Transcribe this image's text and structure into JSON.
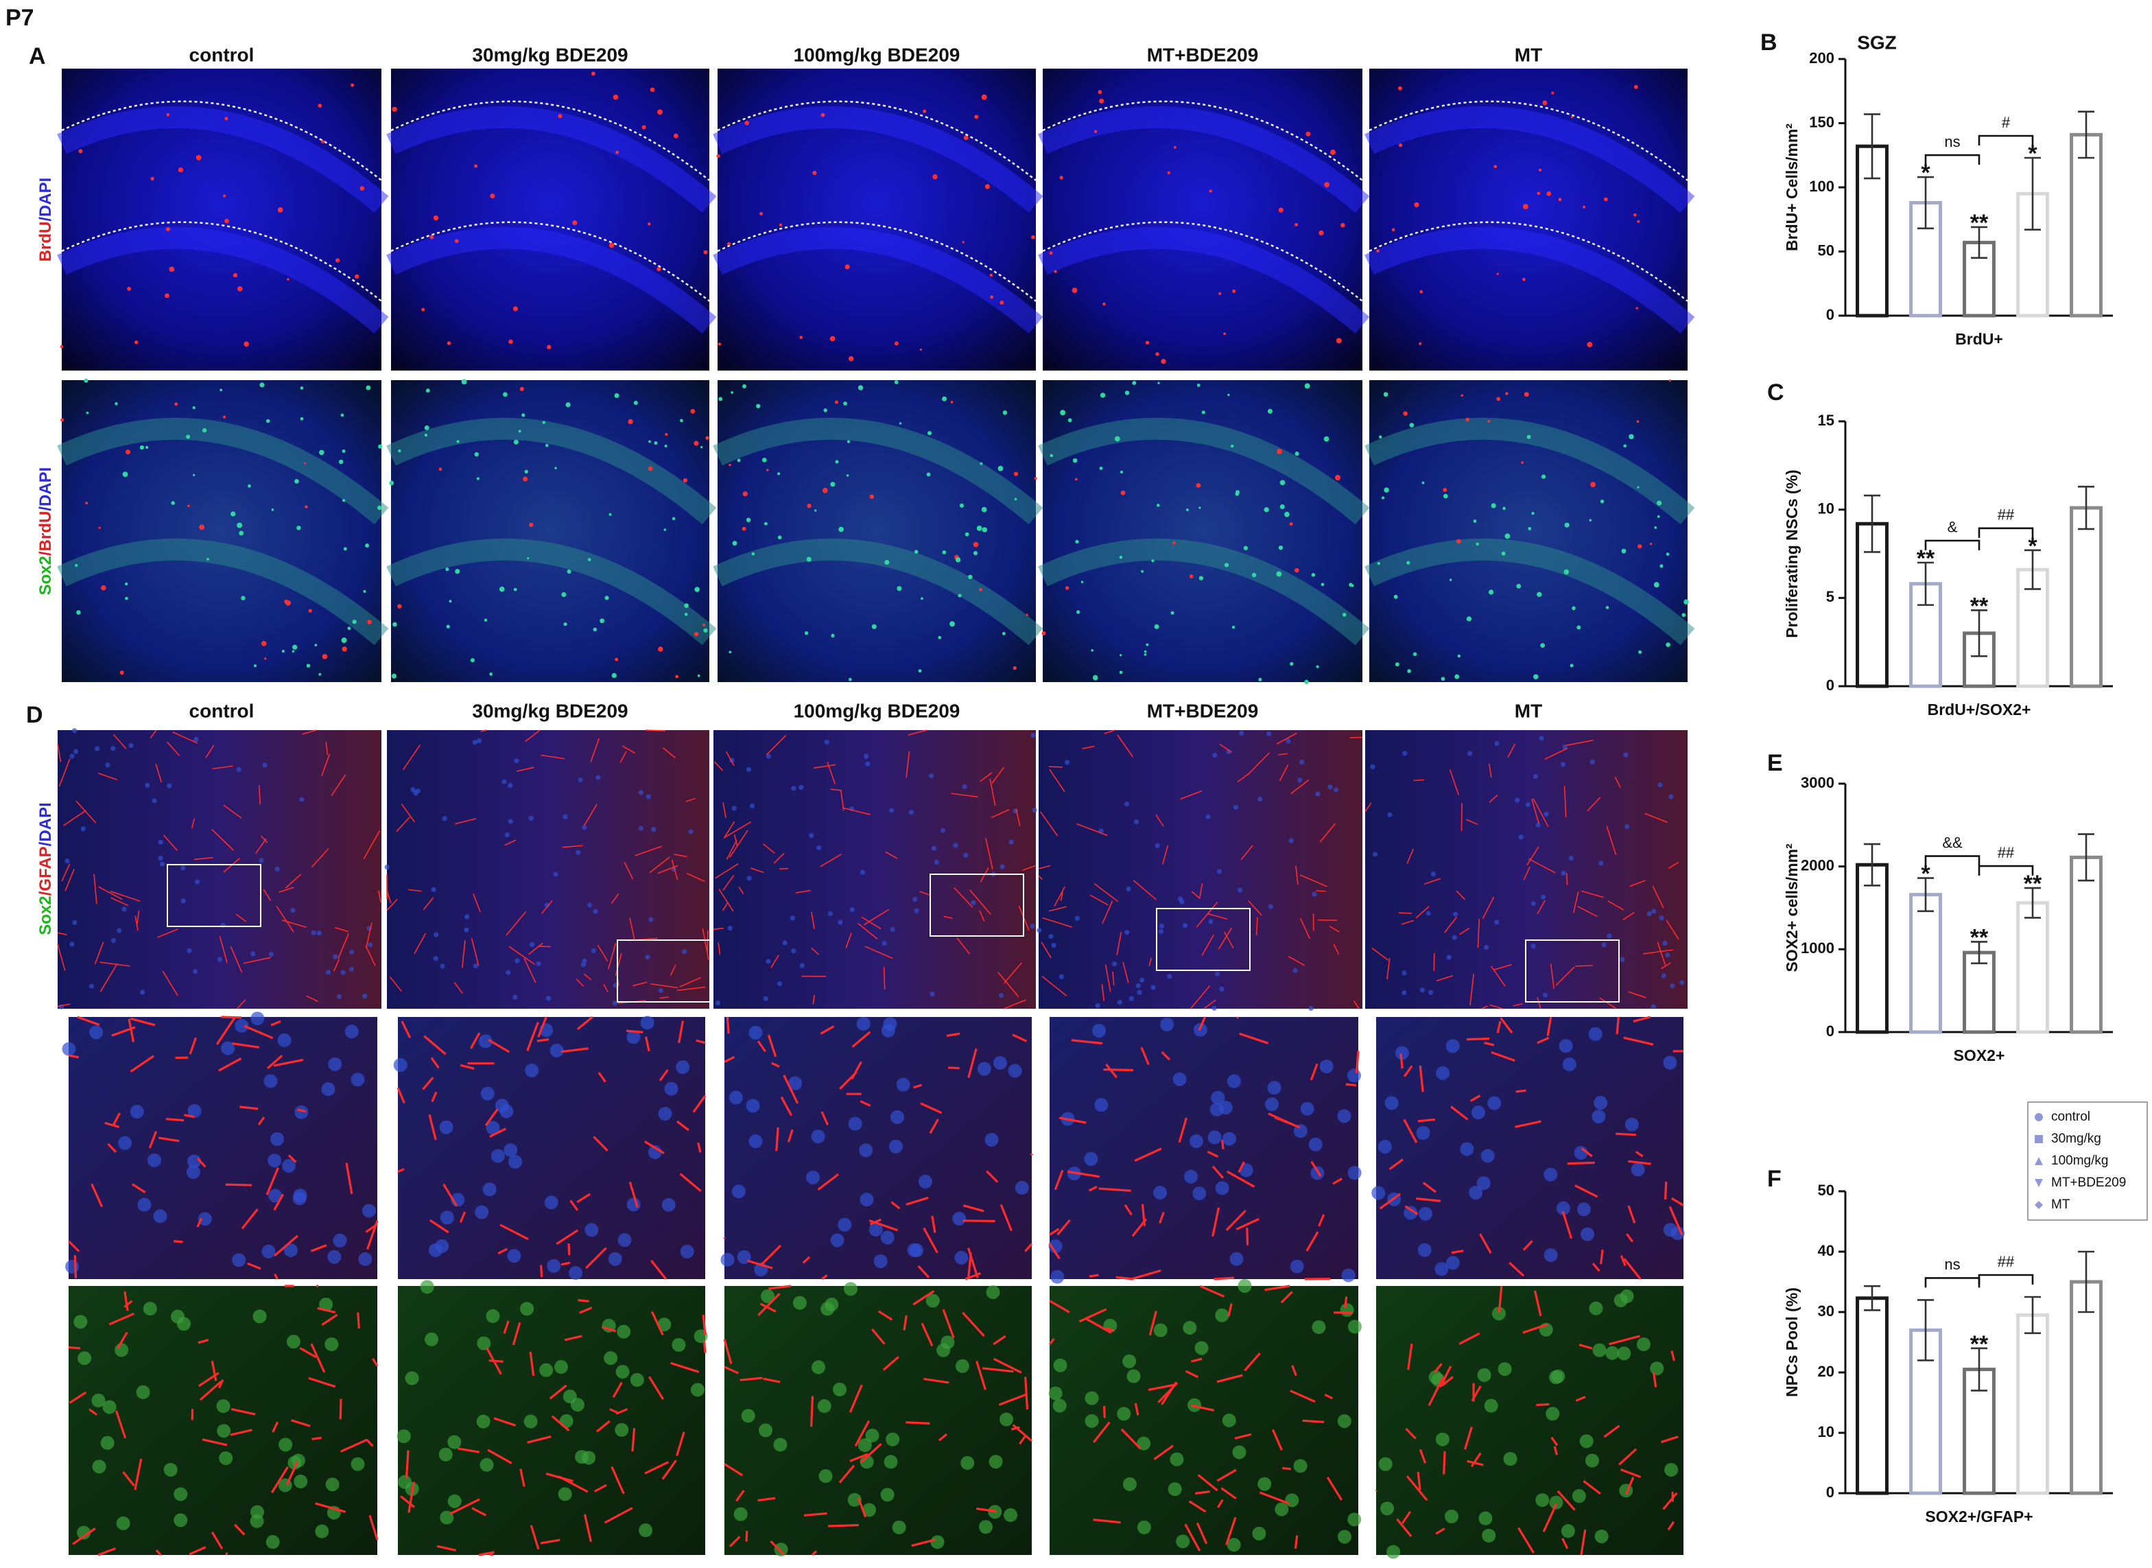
{
  "figure": {
    "label": "P7",
    "panel_a": {
      "letter": "A",
      "columns": [
        "control",
        "30mg/kg BDE209",
        "100mg/kg BDE209",
        "MT+BDE209",
        "MT"
      ],
      "row_labels": [
        [
          {
            "text": "BrdU",
            "color": "#e02020"
          },
          {
            "text": "/DAPI",
            "color": "#2a2ae0"
          }
        ],
        [
          {
            "text": "Sox2",
            "color": "#18b818"
          },
          {
            "text": "/BrdU",
            "color": "#e02020"
          },
          {
            "text": "/DAPI",
            "color": "#2a2ae0"
          }
        ]
      ]
    },
    "panel_d": {
      "letter": "D",
      "columns": [
        "control",
        "30mg/kg BDE209",
        "100mg/kg BDE209",
        "MT+BDE209",
        "MT"
      ],
      "row_labels": [
        [
          {
            "text": "Sox2",
            "color": "#18b818"
          },
          {
            "text": "/GFAP",
            "color": "#e02020"
          },
          {
            "text": "/DAPI",
            "color": "#2a2ae0"
          }
        ]
      ]
    }
  },
  "chart_data": [
    {
      "type": "bar",
      "panel": "B",
      "title": "SGZ",
      "xlabel": "BrdU+",
      "ylabel": "BrdU+ Cells/mm²",
      "values": [
        132,
        88,
        57,
        95,
        141
      ],
      "errors": [
        25,
        20,
        12,
        28,
        18
      ],
      "colors": [
        "#1a1a1a",
        "#a3abc9",
        "#707070",
        "#d8d8d8",
        "#8a8a8a"
      ],
      "stars": [
        null,
        "*",
        "**",
        "*",
        null
      ],
      "brackets": [
        {
          "text": "ns",
          "from": 1,
          "to": 2
        },
        {
          "text": "#",
          "from": 2,
          "to": 3
        }
      ],
      "ylim": [
        0,
        200
      ],
      "yticks": [
        0,
        50,
        100,
        150,
        200
      ]
    },
    {
      "type": "bar",
      "panel": "C",
      "xlabel": "BrdU+/SOX2+",
      "ylabel": "Proliferating NSCs (%)",
      "values": [
        9.2,
        5.8,
        3.0,
        6.6,
        10.1
      ],
      "errors": [
        1.6,
        1.2,
        1.3,
        1.1,
        1.2
      ],
      "colors": [
        "#1a1a1a",
        "#a3abc9",
        "#707070",
        "#d8d8d8",
        "#8a8a8a"
      ],
      "stars": [
        null,
        "**",
        "**",
        "*",
        null
      ],
      "brackets": [
        {
          "text": "&",
          "from": 1,
          "to": 2
        },
        {
          "text": "##",
          "from": 2,
          "to": 3
        }
      ],
      "ylim": [
        0,
        15
      ],
      "yticks": [
        0,
        5,
        10,
        15
      ]
    },
    {
      "type": "bar",
      "panel": "E",
      "xlabel": "SOX2+",
      "ylabel": "SOX2+ cells/mm²",
      "values": [
        2020,
        1660,
        960,
        1560,
        2110
      ],
      "errors": [
        250,
        200,
        130,
        180,
        280
      ],
      "colors": [
        "#1a1a1a",
        "#a3abc9",
        "#707070",
        "#d8d8d8",
        "#8a8a8a"
      ],
      "stars": [
        null,
        "*",
        "**",
        "**",
        null
      ],
      "brackets": [
        {
          "text": "&&",
          "from": 1,
          "to": 2
        },
        {
          "text": "##",
          "from": 2,
          "to": 3
        }
      ],
      "ylim": [
        0,
        3000
      ],
      "yticks": [
        0,
        1000,
        2000,
        3000
      ]
    },
    {
      "type": "bar",
      "panel": "F",
      "xlabel": "SOX2+/GFAP+",
      "ylabel": "NPCs Pool (%)",
      "values": [
        32.3,
        27,
        20.5,
        29.5,
        35
      ],
      "errors": [
        2,
        5,
        3.5,
        3,
        5
      ],
      "colors": [
        "#1a1a1a",
        "#a3abc9",
        "#707070",
        "#d8d8d8",
        "#8a8a8a"
      ],
      "stars": [
        null,
        null,
        "**",
        null,
        null
      ],
      "brackets": [
        {
          "text": "ns",
          "from": 1,
          "to": 2
        },
        {
          "text": "##",
          "from": 2,
          "to": 3
        }
      ],
      "ylim": [
        0,
        50
      ],
      "yticks": [
        0,
        10,
        20,
        30,
        40,
        50
      ],
      "legend": {
        "entries": [
          "control",
          "30mg/kg",
          "100mg/kg",
          "MT+BDE209",
          "MT"
        ],
        "markers": [
          "circle",
          "square",
          "triangle",
          "down-triangle",
          "diamond"
        ],
        "color": "#8f98d8",
        "position": "upper right"
      }
    }
  ]
}
